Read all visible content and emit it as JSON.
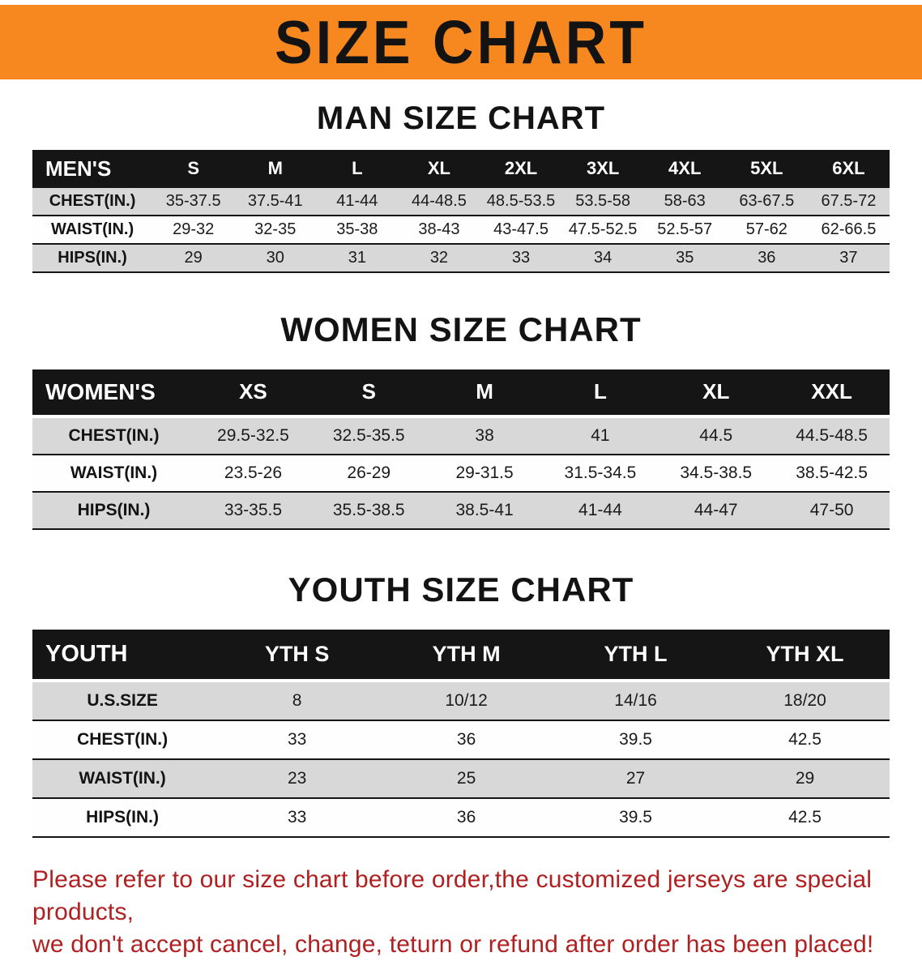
{
  "banner": {
    "title": "SIZE CHART"
  },
  "colors": {
    "banner_orange": "#f6881f",
    "heading_black": "#131313",
    "table_header_black": "#151515",
    "row_shade_gray": "#d8d8d8",
    "row_plain_white": "#fefefe",
    "note_red": "#b02020"
  },
  "men": {
    "heading": "MAN SIZE CHART",
    "table": {
      "label": "MEN'S",
      "columns": [
        "S",
        "M",
        "L",
        "XL",
        "2XL",
        "3XL",
        "4XL",
        "5XL",
        "6XL"
      ],
      "rows": [
        {
          "label": "CHEST(IN.)",
          "values": [
            "35-37.5",
            "37.5-41",
            "41-44",
            "44-48.5",
            "48.5-53.5",
            "53.5-58",
            "58-63",
            "63-67.5",
            "67.5-72"
          ]
        },
        {
          "label": "WAIST(IN.)",
          "values": [
            "29-32",
            "32-35",
            "35-38",
            "38-43",
            "43-47.5",
            "47.5-52.5",
            "52.5-57",
            "57-62",
            "62-66.5"
          ]
        },
        {
          "label": "HIPS(IN.)",
          "values": [
            "29",
            "30",
            "31",
            "32",
            "33",
            "34",
            "35",
            "36",
            "37"
          ]
        }
      ]
    }
  },
  "women": {
    "heading": "WOMEN SIZE CHART",
    "table": {
      "label": "WOMEN'S",
      "columns": [
        "XS",
        "S",
        "M",
        "L",
        "XL",
        "XXL"
      ],
      "rows": [
        {
          "label": "CHEST(IN.)",
          "values": [
            "29.5-32.5",
            "32.5-35.5",
            "38",
            "41",
            "44.5",
            "44.5-48.5"
          ]
        },
        {
          "label": "WAIST(IN.)",
          "values": [
            "23.5-26",
            "26-29",
            "29-31.5",
            "31.5-34.5",
            "34.5-38.5",
            "38.5-42.5"
          ]
        },
        {
          "label": "HIPS(IN.)",
          "values": [
            "33-35.5",
            "35.5-38.5",
            "38.5-41",
            "41-44",
            "44-47",
            "47-50"
          ]
        }
      ]
    }
  },
  "youth": {
    "heading": "YOUTH SIZE CHART",
    "table": {
      "label": "YOUTH",
      "columns": [
        "YTH S",
        "YTH M",
        "YTH L",
        "YTH XL"
      ],
      "rows": [
        {
          "label": "U.S.SIZE",
          "values": [
            "8",
            "10/12",
            "14/16",
            "18/20"
          ]
        },
        {
          "label": "CHEST(IN.)",
          "values": [
            "33",
            "36",
            "39.5",
            "42.5"
          ]
        },
        {
          "label": "WAIST(IN.)",
          "values": [
            "23",
            "25",
            "27",
            "29"
          ]
        },
        {
          "label": "HIPS(IN.)",
          "values": [
            "33",
            "36",
            "39.5",
            "42.5"
          ]
        }
      ]
    }
  },
  "note": {
    "line1": "Please refer to our size chart before order,the customized jerseys are special products,",
    "line2": "we don't accept cancel, change, teturn or refund after order has been placed!"
  }
}
